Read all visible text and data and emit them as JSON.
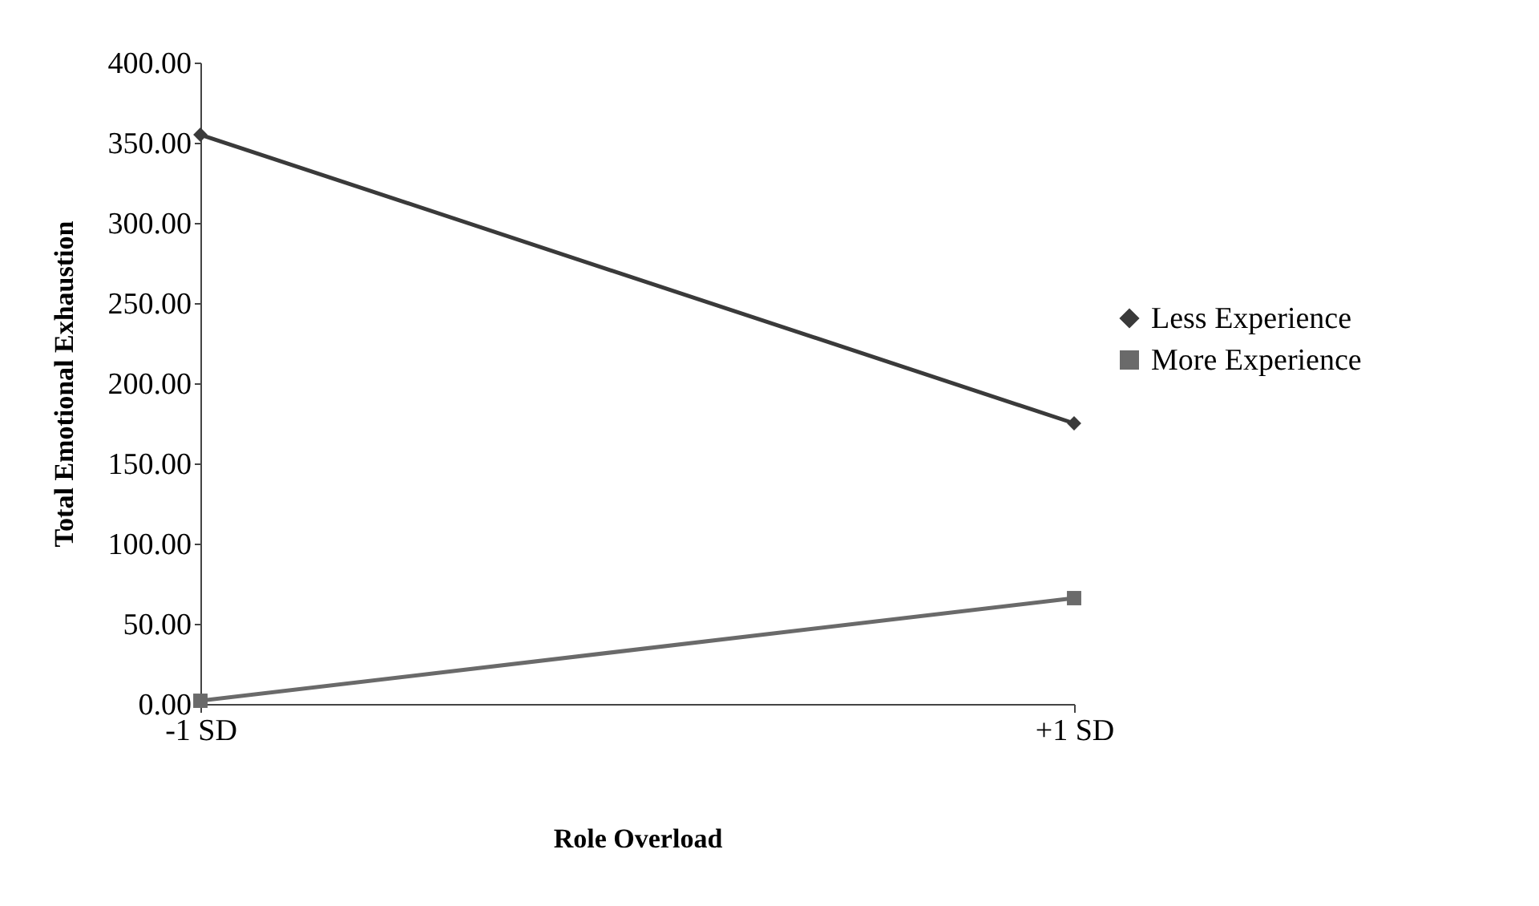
{
  "chart_data": {
    "type": "line",
    "xlabel": "Role Overload",
    "ylabel": "Total Emotional Exhaustion",
    "categories": [
      "-1 SD",
      "+1 SD"
    ],
    "series": [
      {
        "name": "Less Experience",
        "color": "#3a3a3a",
        "marker": "diamond",
        "values": [
          355,
          175
        ]
      },
      {
        "name": "More Experience",
        "color": "#6a6a6a",
        "marker": "square",
        "values": [
          2,
          66
        ]
      }
    ],
    "ylim": [
      0,
      400
    ],
    "yticks": [
      {
        "value": 0,
        "label": "0.00"
      },
      {
        "value": 50,
        "label": "50.00"
      },
      {
        "value": 100,
        "label": "100.00"
      },
      {
        "value": 150,
        "label": "150.00"
      },
      {
        "value": 200,
        "label": "200.00"
      },
      {
        "value": 250,
        "label": "250.00"
      },
      {
        "value": 300,
        "label": "300.00"
      },
      {
        "value": 350,
        "label": "350.00"
      },
      {
        "value": 400,
        "label": "400.00"
      }
    ],
    "grid": false,
    "legend": "right",
    "line_style": "solid"
  }
}
